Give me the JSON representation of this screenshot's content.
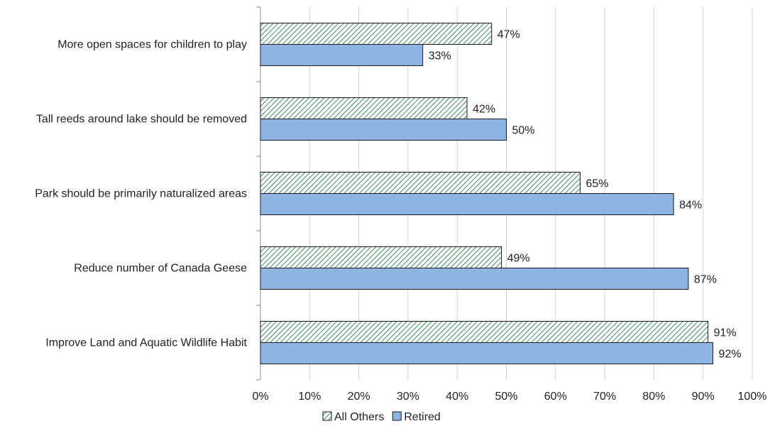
{
  "chart_data": {
    "type": "bar",
    "orientation": "horizontal",
    "categories": [
      "More open spaces for children to play",
      "Tall reeds around lake should be removed",
      "Park should be primarily naturalized areas",
      "Reduce number of Canada Geese",
      "Improve Land and Aquatic Wildlife Habit"
    ],
    "series": [
      {
        "name": "All Others",
        "values": [
          47,
          42,
          65,
          49,
          91
        ],
        "labels": [
          "47%",
          "42%",
          "65%",
          "49%",
          "91%"
        ],
        "color": "#2e8b57",
        "pattern": "diagonal-hatch"
      },
      {
        "name": "Retired",
        "values": [
          33,
          50,
          84,
          87,
          92
        ],
        "labels": [
          "33%",
          "50%",
          "84%",
          "87%",
          "92%"
        ],
        "color": "#8eb4e3",
        "pattern": "solid"
      }
    ],
    "xlim": [
      0,
      100
    ],
    "xticks": [
      "0%",
      "10%",
      "20%",
      "30%",
      "40%",
      "50%",
      "60%",
      "70%",
      "80%",
      "90%",
      "100%"
    ],
    "grid": "vertical",
    "legend": "bottom",
    "title": "",
    "xlabel": "",
    "ylabel": ""
  }
}
